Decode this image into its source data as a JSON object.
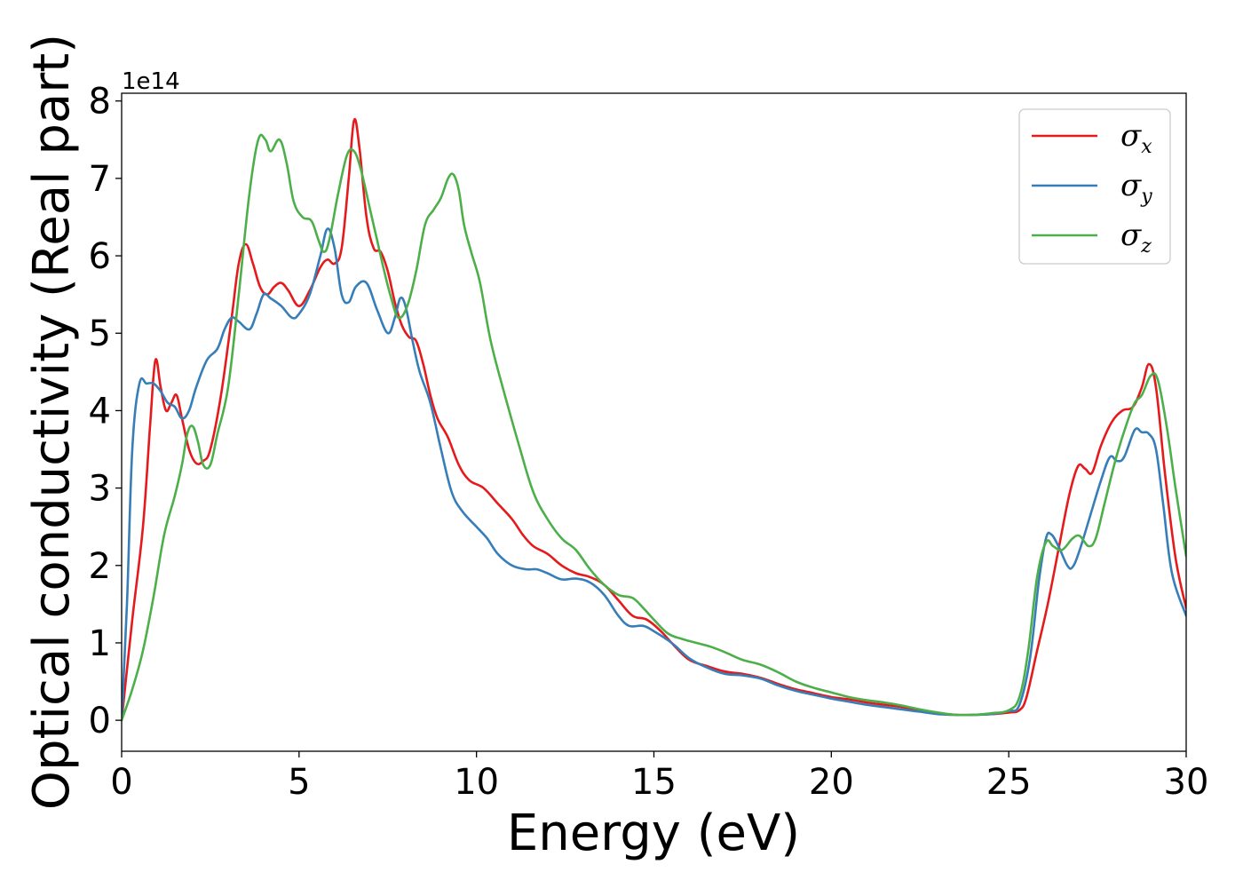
{
  "chart_data": {
    "type": "line",
    "xlabel": "Energy (eV)",
    "ylabel": "Optical conductivity (Real part)",
    "y_offset_label": "1e14",
    "xlim": [
      0,
      30
    ],
    "ylim": [
      -0.4,
      8.1
    ],
    "xticks": [
      0,
      5,
      10,
      15,
      20,
      25,
      30
    ],
    "xtick_labels": [
      "0",
      "5",
      "10",
      "15",
      "20",
      "25",
      "30"
    ],
    "yticks": [
      0,
      1,
      2,
      3,
      4,
      5,
      6,
      7,
      8
    ],
    "ytick_labels": [
      "0",
      "1",
      "2",
      "3",
      "4",
      "5",
      "6",
      "7",
      "8"
    ],
    "grid": false,
    "legend_position": "top-right",
    "series": [
      {
        "name": "σx",
        "symbol": "σ",
        "subscript": "x",
        "color": "#e41a1c",
        "points": [
          [
            0,
            0
          ],
          [
            0.3,
            1.3
          ],
          [
            0.6,
            2.5
          ],
          [
            0.8,
            3.8
          ],
          [
            0.95,
            4.65
          ],
          [
            1.1,
            4.3
          ],
          [
            1.25,
            4.0
          ],
          [
            1.4,
            4.1
          ],
          [
            1.55,
            4.2
          ],
          [
            1.7,
            3.9
          ],
          [
            1.9,
            3.5
          ],
          [
            2.1,
            3.32
          ],
          [
            2.3,
            3.35
          ],
          [
            2.5,
            3.5
          ],
          [
            2.8,
            4.2
          ],
          [
            3.1,
            5.2
          ],
          [
            3.3,
            5.9
          ],
          [
            3.5,
            6.15
          ],
          [
            3.7,
            5.9
          ],
          [
            3.9,
            5.6
          ],
          [
            4.1,
            5.5
          ],
          [
            4.3,
            5.6
          ],
          [
            4.5,
            5.65
          ],
          [
            4.7,
            5.55
          ],
          [
            5.0,
            5.35
          ],
          [
            5.3,
            5.55
          ],
          [
            5.6,
            5.85
          ],
          [
            5.8,
            5.95
          ],
          [
            6.0,
            5.9
          ],
          [
            6.2,
            6.1
          ],
          [
            6.4,
            7.0
          ],
          [
            6.55,
            7.75
          ],
          [
            6.7,
            7.4
          ],
          [
            6.9,
            6.5
          ],
          [
            7.1,
            6.1
          ],
          [
            7.3,
            6.05
          ],
          [
            7.5,
            5.8
          ],
          [
            7.7,
            5.4
          ],
          [
            7.9,
            5.1
          ],
          [
            8.1,
            4.95
          ],
          [
            8.3,
            4.9
          ],
          [
            8.5,
            4.6
          ],
          [
            8.7,
            4.2
          ],
          [
            8.9,
            3.9
          ],
          [
            9.2,
            3.65
          ],
          [
            9.5,
            3.3
          ],
          [
            9.8,
            3.1
          ],
          [
            10.2,
            3.0
          ],
          [
            10.6,
            2.8
          ],
          [
            11.0,
            2.6
          ],
          [
            11.3,
            2.4
          ],
          [
            11.6,
            2.25
          ],
          [
            12.0,
            2.15
          ],
          [
            12.4,
            2.0
          ],
          [
            12.8,
            1.9
          ],
          [
            13.2,
            1.85
          ],
          [
            13.6,
            1.75
          ],
          [
            14.0,
            1.55
          ],
          [
            14.4,
            1.35
          ],
          [
            14.8,
            1.3
          ],
          [
            15.2,
            1.15
          ],
          [
            15.6,
            0.95
          ],
          [
            16.0,
            0.78
          ],
          [
            16.5,
            0.7
          ],
          [
            17.0,
            0.63
          ],
          [
            17.5,
            0.6
          ],
          [
            18.0,
            0.55
          ],
          [
            18.5,
            0.47
          ],
          [
            19.0,
            0.4
          ],
          [
            19.5,
            0.35
          ],
          [
            20.0,
            0.3
          ],
          [
            20.5,
            0.27
          ],
          [
            21.0,
            0.23
          ],
          [
            21.5,
            0.2
          ],
          [
            22.0,
            0.17
          ],
          [
            22.5,
            0.13
          ],
          [
            23.0,
            0.09
          ],
          [
            23.5,
            0.07
          ],
          [
            24.0,
            0.07
          ],
          [
            24.5,
            0.08
          ],
          [
            25.0,
            0.1
          ],
          [
            25.3,
            0.13
          ],
          [
            25.5,
            0.3
          ],
          [
            25.8,
            0.9
          ],
          [
            26.1,
            1.5
          ],
          [
            26.4,
            2.2
          ],
          [
            26.7,
            2.9
          ],
          [
            26.95,
            3.28
          ],
          [
            27.15,
            3.25
          ],
          [
            27.35,
            3.2
          ],
          [
            27.6,
            3.55
          ],
          [
            27.9,
            3.85
          ],
          [
            28.2,
            4.0
          ],
          [
            28.5,
            4.05
          ],
          [
            28.75,
            4.3
          ],
          [
            28.95,
            4.6
          ],
          [
            29.15,
            4.3
          ],
          [
            29.4,
            3.2
          ],
          [
            29.7,
            2.1
          ],
          [
            30.0,
            1.45
          ]
        ]
      },
      {
        "name": "σy",
        "symbol": "σ",
        "subscript": "y",
        "color": "#377eb8",
        "points": [
          [
            0,
            0
          ],
          [
            0.15,
            1.5
          ],
          [
            0.3,
            3.5
          ],
          [
            0.5,
            4.35
          ],
          [
            0.7,
            4.35
          ],
          [
            0.9,
            4.35
          ],
          [
            1.1,
            4.25
          ],
          [
            1.3,
            4.1
          ],
          [
            1.5,
            4.05
          ],
          [
            1.7,
            3.9
          ],
          [
            1.9,
            4.0
          ],
          [
            2.1,
            4.3
          ],
          [
            2.4,
            4.65
          ],
          [
            2.7,
            4.8
          ],
          [
            2.9,
            5.05
          ],
          [
            3.1,
            5.2
          ],
          [
            3.3,
            5.15
          ],
          [
            3.6,
            5.05
          ],
          [
            3.8,
            5.25
          ],
          [
            4.0,
            5.5
          ],
          [
            4.2,
            5.45
          ],
          [
            4.5,
            5.35
          ],
          [
            4.8,
            5.2
          ],
          [
            5.0,
            5.25
          ],
          [
            5.3,
            5.5
          ],
          [
            5.6,
            6.0
          ],
          [
            5.8,
            6.35
          ],
          [
            6.0,
            6.1
          ],
          [
            6.2,
            5.5
          ],
          [
            6.4,
            5.4
          ],
          [
            6.6,
            5.6
          ],
          [
            6.9,
            5.65
          ],
          [
            7.2,
            5.3
          ],
          [
            7.5,
            5.0
          ],
          [
            7.7,
            5.2
          ],
          [
            7.85,
            5.45
          ],
          [
            8.0,
            5.35
          ],
          [
            8.2,
            4.9
          ],
          [
            8.4,
            4.5
          ],
          [
            8.7,
            4.1
          ],
          [
            9.0,
            3.5
          ],
          [
            9.3,
            2.95
          ],
          [
            9.6,
            2.7
          ],
          [
            10.0,
            2.5
          ],
          [
            10.3,
            2.35
          ],
          [
            10.6,
            2.15
          ],
          [
            11.0,
            2.0
          ],
          [
            11.4,
            1.95
          ],
          [
            11.7,
            1.95
          ],
          [
            12.0,
            1.9
          ],
          [
            12.4,
            1.82
          ],
          [
            12.8,
            1.83
          ],
          [
            13.2,
            1.78
          ],
          [
            13.6,
            1.62
          ],
          [
            14.0,
            1.35
          ],
          [
            14.3,
            1.22
          ],
          [
            14.7,
            1.22
          ],
          [
            15.0,
            1.15
          ],
          [
            15.5,
            1.0
          ],
          [
            16.0,
            0.8
          ],
          [
            16.5,
            0.68
          ],
          [
            17.0,
            0.6
          ],
          [
            17.5,
            0.58
          ],
          [
            18.0,
            0.54
          ],
          [
            18.5,
            0.45
          ],
          [
            19.0,
            0.38
          ],
          [
            19.5,
            0.33
          ],
          [
            20.0,
            0.28
          ],
          [
            20.5,
            0.24
          ],
          [
            21.0,
            0.2
          ],
          [
            21.5,
            0.17
          ],
          [
            22.0,
            0.14
          ],
          [
            22.5,
            0.11
          ],
          [
            23.0,
            0.08
          ],
          [
            23.5,
            0.07
          ],
          [
            24.0,
            0.07
          ],
          [
            24.5,
            0.08
          ],
          [
            25.0,
            0.12
          ],
          [
            25.3,
            0.2
          ],
          [
            25.6,
            0.8
          ],
          [
            25.85,
            1.8
          ],
          [
            26.05,
            2.35
          ],
          [
            26.2,
            2.4
          ],
          [
            26.4,
            2.25
          ],
          [
            26.65,
            2.0
          ],
          [
            26.8,
            1.98
          ],
          [
            27.0,
            2.2
          ],
          [
            27.3,
            2.65
          ],
          [
            27.6,
            3.1
          ],
          [
            27.85,
            3.4
          ],
          [
            28.05,
            3.35
          ],
          [
            28.25,
            3.4
          ],
          [
            28.55,
            3.75
          ],
          [
            28.75,
            3.72
          ],
          [
            28.95,
            3.7
          ],
          [
            29.15,
            3.5
          ],
          [
            29.35,
            2.8
          ],
          [
            29.6,
            1.9
          ],
          [
            30.0,
            1.35
          ]
        ]
      },
      {
        "name": "σz",
        "symbol": "σ",
        "subscript": "z",
        "color": "#4daf4a",
        "points": [
          [
            0,
            0
          ],
          [
            0.3,
            0.4
          ],
          [
            0.6,
            0.9
          ],
          [
            0.9,
            1.6
          ],
          [
            1.2,
            2.4
          ],
          [
            1.5,
            2.9
          ],
          [
            1.7,
            3.3
          ],
          [
            1.85,
            3.7
          ],
          [
            2.0,
            3.8
          ],
          [
            2.15,
            3.6
          ],
          [
            2.3,
            3.3
          ],
          [
            2.5,
            3.3
          ],
          [
            2.7,
            3.7
          ],
          [
            3.0,
            4.3
          ],
          [
            3.3,
            5.5
          ],
          [
            3.6,
            6.8
          ],
          [
            3.85,
            7.5
          ],
          [
            4.05,
            7.5
          ],
          [
            4.2,
            7.35
          ],
          [
            4.45,
            7.5
          ],
          [
            4.65,
            7.2
          ],
          [
            4.85,
            6.7
          ],
          [
            5.1,
            6.5
          ],
          [
            5.35,
            6.45
          ],
          [
            5.55,
            6.2
          ],
          [
            5.7,
            6.05
          ],
          [
            5.85,
            6.2
          ],
          [
            6.1,
            6.8
          ],
          [
            6.35,
            7.3
          ],
          [
            6.55,
            7.35
          ],
          [
            6.75,
            7.1
          ],
          [
            7.0,
            6.6
          ],
          [
            7.2,
            6.2
          ],
          [
            7.4,
            5.8
          ],
          [
            7.6,
            5.45
          ],
          [
            7.8,
            5.2
          ],
          [
            8.05,
            5.35
          ],
          [
            8.3,
            5.8
          ],
          [
            8.55,
            6.4
          ],
          [
            8.8,
            6.6
          ],
          [
            9.0,
            6.75
          ],
          [
            9.2,
            7.0
          ],
          [
            9.35,
            7.05
          ],
          [
            9.5,
            6.85
          ],
          [
            9.65,
            6.4
          ],
          [
            9.85,
            6.05
          ],
          [
            10.1,
            5.65
          ],
          [
            10.4,
            4.9
          ],
          [
            10.8,
            4.2
          ],
          [
            11.2,
            3.55
          ],
          [
            11.6,
            2.95
          ],
          [
            12.0,
            2.6
          ],
          [
            12.4,
            2.35
          ],
          [
            12.8,
            2.2
          ],
          [
            13.2,
            1.95
          ],
          [
            13.6,
            1.75
          ],
          [
            14.0,
            1.62
          ],
          [
            14.4,
            1.58
          ],
          [
            14.7,
            1.45
          ],
          [
            15.0,
            1.3
          ],
          [
            15.4,
            1.12
          ],
          [
            15.8,
            1.05
          ],
          [
            16.2,
            1.0
          ],
          [
            16.6,
            0.95
          ],
          [
            17.0,
            0.88
          ],
          [
            17.5,
            0.78
          ],
          [
            18.0,
            0.72
          ],
          [
            18.5,
            0.62
          ],
          [
            19.0,
            0.5
          ],
          [
            19.5,
            0.42
          ],
          [
            20.0,
            0.36
          ],
          [
            20.5,
            0.3
          ],
          [
            21.0,
            0.26
          ],
          [
            21.5,
            0.23
          ],
          [
            22.0,
            0.19
          ],
          [
            22.5,
            0.14
          ],
          [
            23.0,
            0.1
          ],
          [
            23.5,
            0.07
          ],
          [
            24.0,
            0.07
          ],
          [
            24.5,
            0.09
          ],
          [
            25.0,
            0.13
          ],
          [
            25.3,
            0.3
          ],
          [
            25.55,
            0.9
          ],
          [
            25.8,
            1.85
          ],
          [
            26.05,
            2.3
          ],
          [
            26.25,
            2.25
          ],
          [
            26.5,
            2.2
          ],
          [
            26.8,
            2.35
          ],
          [
            27.0,
            2.38
          ],
          [
            27.25,
            2.25
          ],
          [
            27.45,
            2.35
          ],
          [
            27.7,
            2.8
          ],
          [
            28.0,
            3.35
          ],
          [
            28.3,
            3.8
          ],
          [
            28.55,
            4.1
          ],
          [
            28.75,
            4.2
          ],
          [
            29.0,
            4.45
          ],
          [
            29.2,
            4.4
          ],
          [
            29.45,
            3.8
          ],
          [
            29.7,
            3.0
          ],
          [
            30.0,
            2.12
          ]
        ]
      }
    ]
  }
}
